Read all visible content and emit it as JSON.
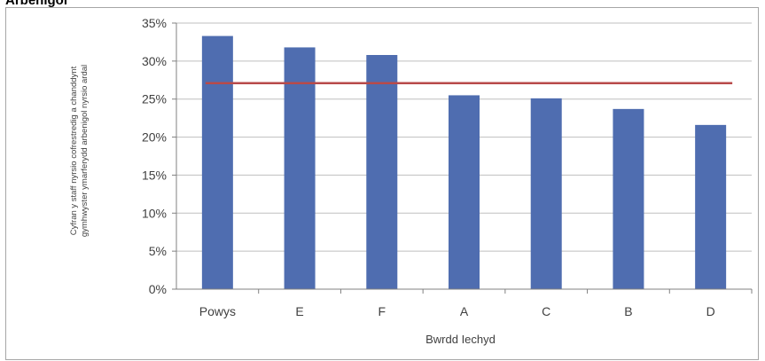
{
  "page": {
    "top_title": "Arbenigol"
  },
  "chart_data": {
    "type": "bar",
    "categories": [
      "Powys",
      "E",
      "F",
      "A",
      "C",
      "B",
      "D"
    ],
    "values": [
      33.3,
      31.8,
      30.8,
      25.5,
      25.1,
      23.7,
      21.6
    ],
    "reference_line": {
      "value": 27.1
    },
    "title": "",
    "xlabel": "Bwrdd Iechyd",
    "ylabel_lines": [
      "Cyfran y staff nyrsio cofrestredig a chanddynt",
      "gymhwyster ymarferydd arbenigol nyrsio ardal"
    ],
    "ylim": [
      0,
      35
    ],
    "yticks": [
      "0%",
      "5%",
      "10%",
      "15%",
      "20%",
      "25%",
      "30%",
      "35%"
    ],
    "grid": true,
    "legend": "none",
    "colors": {
      "bar": "#4f6db0",
      "line": "#b84a4a",
      "grid": "#bfbfbf"
    }
  }
}
